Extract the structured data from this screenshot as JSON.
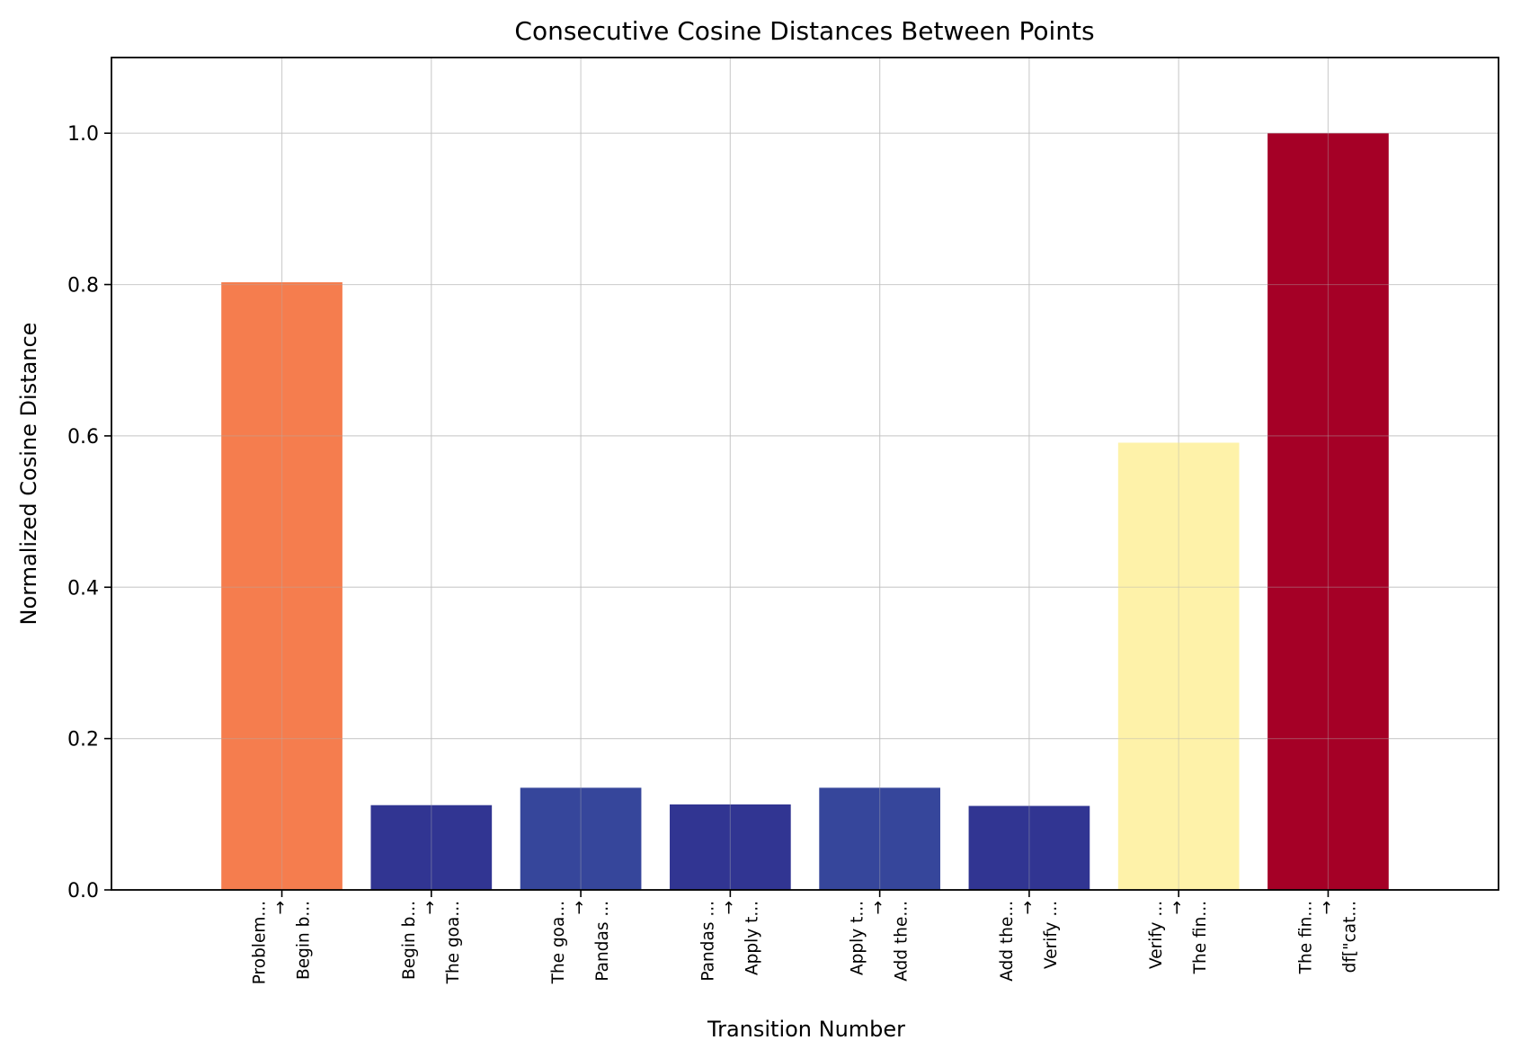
{
  "chart_data": {
    "type": "bar",
    "title": "Consecutive Cosine Distances Between Points",
    "xlabel": "Transition Number",
    "ylabel": "Normalized Cosine Distance",
    "ylim": [
      0,
      1.1
    ],
    "yticks": [
      0.0,
      0.2,
      0.4,
      0.6,
      0.8,
      1.0
    ],
    "ytick_labels": [
      "0.0",
      "0.2",
      "0.4",
      "0.6",
      "0.8",
      "1.0"
    ],
    "grid": true,
    "legend": "none",
    "categories": [
      [
        "Problem...",
        "→",
        "Begin b..."
      ],
      [
        "Begin b...",
        "→",
        "The goa..."
      ],
      [
        "The goa...",
        "→",
        "Pandas ..."
      ],
      [
        "Pandas ...",
        "→",
        "Apply t..."
      ],
      [
        "Apply t...",
        "→",
        "Add the..."
      ],
      [
        "Add the...",
        "→",
        "Verify ..."
      ],
      [
        "Verify ...",
        "→",
        "The fin..."
      ],
      [
        "The fin...",
        "→",
        "df[\"cat..."
      ]
    ],
    "values": [
      0.803,
      0.112,
      0.135,
      0.113,
      0.135,
      0.111,
      0.591,
      1.0
    ],
    "colors": [
      "#f57d4e",
      "#313592",
      "#36469b",
      "#313592",
      "#36469b",
      "#313592",
      "#fef2a9",
      "#a50026"
    ]
  }
}
